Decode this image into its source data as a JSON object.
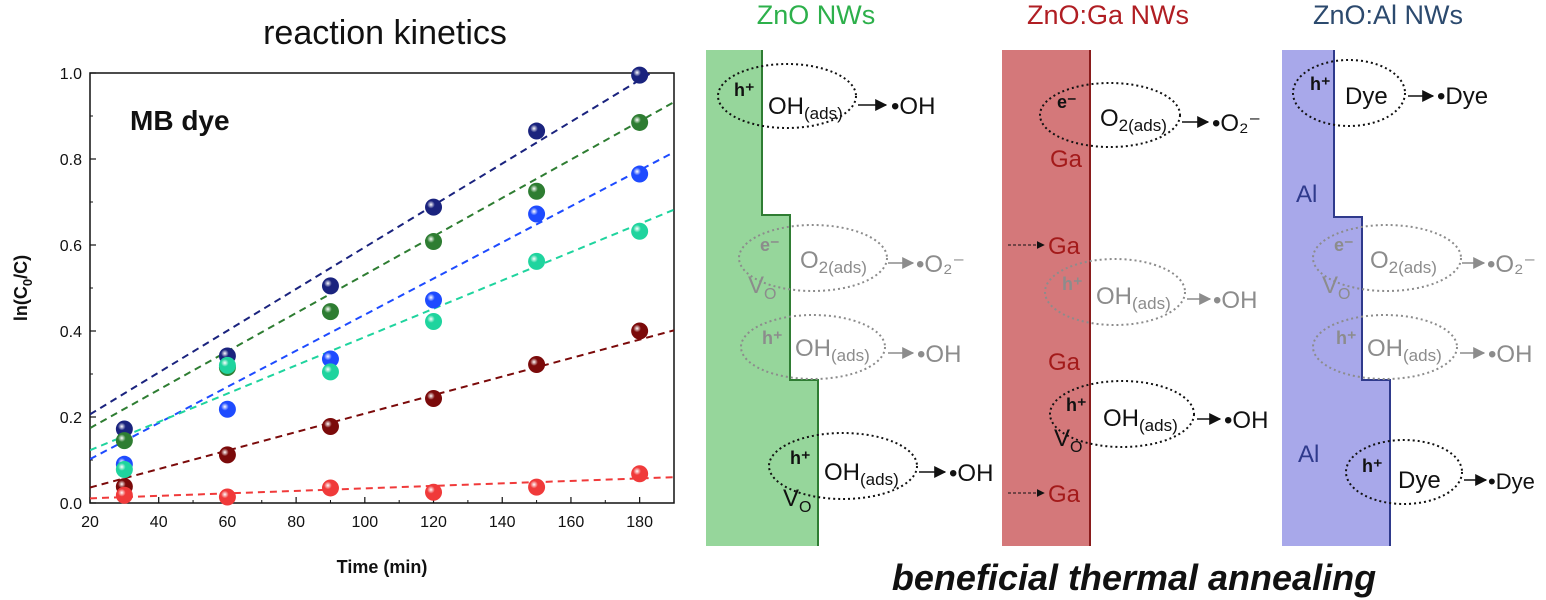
{
  "chart_data": {
    "type": "scatter",
    "title": "reaction kinetics",
    "panel_label": "MB dye",
    "xlabel": "Time (min)",
    "ylabel": "ln(C0/C)",
    "xlim": [
      20,
      190
    ],
    "ylim": [
      0,
      1.0
    ],
    "xticks": [
      "20",
      "40",
      "60",
      "80",
      "100",
      "120",
      "140",
      "160",
      "180"
    ],
    "yticks": [
      "0.0",
      "0.2",
      "0.4",
      "0.6",
      "0.8",
      "1.0"
    ],
    "x": [
      30,
      60,
      90,
      120,
      150,
      180
    ],
    "series": [
      {
        "color": "#1a237e",
        "values": [
          0.172,
          0.342,
          0.505,
          0.688,
          0.865,
          0.995
        ],
        "fit": [
          0.109,
          0.00486
        ]
      },
      {
        "color": "#2e7d32",
        "values": [
          0.145,
          0.315,
          0.445,
          0.608,
          0.725,
          0.885
        ],
        "fit": [
          0.085,
          0.00446
        ]
      },
      {
        "color": "#1e4bff",
        "values": [
          0.09,
          0.218,
          0.335,
          0.472,
          0.672,
          0.765
        ],
        "fit": [
          0.018,
          0.0042
        ]
      },
      {
        "color": "#1fd49e",
        "values": [
          0.078,
          0.32,
          0.305,
          0.422,
          0.562,
          0.632
        ],
        "fit": [
          0.057,
          0.00329
        ]
      },
      {
        "color": "#7b0a0a",
        "values": [
          0.038,
          0.112,
          0.178,
          0.243,
          0.322,
          0.4
        ],
        "fit": [
          -0.007,
          0.00215
        ]
      },
      {
        "color": "#f03a3a",
        "values": [
          0.018,
          0.014,
          0.035,
          0.025,
          0.037,
          0.068
        ],
        "fit": [
          0.005,
          0.00029
        ]
      }
    ],
    "grid": false
  },
  "diagram": {
    "caption": "beneficial thermal annealing",
    "colors": {
      "zno": "#96d69b",
      "ga": "#d4787a",
      "al": "#a8a8ea",
      "zno_edge": "#2f7d33",
      "ga_edge": "#8a1c1c",
      "al_edge": "#2f3a8c"
    },
    "columns": [
      {
        "title": "ZnO NWs",
        "title_color": "#2db04b",
        "reactions": [
          {
            "carrier": "h⁺",
            "species": "OH",
            "sub": "(ads)",
            "product": "•OH",
            "active": true
          },
          {
            "carrier": "e⁻",
            "species": "O",
            "sub": "2(ads)",
            "product": "•O₂⁻",
            "active": false
          },
          {
            "carrier": "h⁺",
            "species": "OH",
            "sub": "(ads)",
            "product": "•OH",
            "active": false
          },
          {
            "carrier": "h⁺",
            "species": "OH",
            "sub": "(ads)",
            "product": "•OH",
            "active": true
          }
        ],
        "defects": [
          {
            "main": "V",
            "sub": "O",
            "active": false
          },
          {
            "main": "V",
            "sub": "O",
            "active": true
          }
        ]
      },
      {
        "title": "ZnO:Ga NWs",
        "title_color": "#b01e23",
        "reactions": [
          {
            "carrier": "e⁻",
            "species": "O",
            "sub": "2(ads)",
            "product": "•O₂⁻",
            "active": true
          },
          {
            "carrier": "h⁺",
            "species": "OH",
            "sub": "(ads)",
            "product": "•OH",
            "active": false
          },
          {
            "carrier": "h⁺",
            "species": "OH",
            "sub": "(ads)",
            "product": "•OH",
            "active": true
          }
        ],
        "dopant_labels": [
          "Ga",
          "Ga",
          "Ga",
          "Ga"
        ],
        "defects": [
          {
            "main": "V",
            "sub": "O",
            "active": true
          }
        ]
      },
      {
        "title": "ZnO:Al NWs",
        "title_color": "#2c4a6e",
        "reactions": [
          {
            "carrier": "h⁺",
            "species": "Dye",
            "sub": "",
            "product": "•Dye",
            "active": true
          },
          {
            "carrier": "e⁻",
            "species": "O",
            "sub": "2(ads)",
            "product": "•O₂⁻",
            "active": false
          },
          {
            "carrier": "h⁺",
            "species": "OH",
            "sub": "(ads)",
            "product": "•OH",
            "active": false
          },
          {
            "carrier": "h⁺",
            "species": "Dye",
            "sub": "",
            "product": "•Dye",
            "active": true
          }
        ],
        "dopant_labels": [
          "Al",
          "Al"
        ],
        "defects": [
          {
            "main": "V",
            "sub": "O",
            "active": false
          }
        ]
      }
    ]
  }
}
